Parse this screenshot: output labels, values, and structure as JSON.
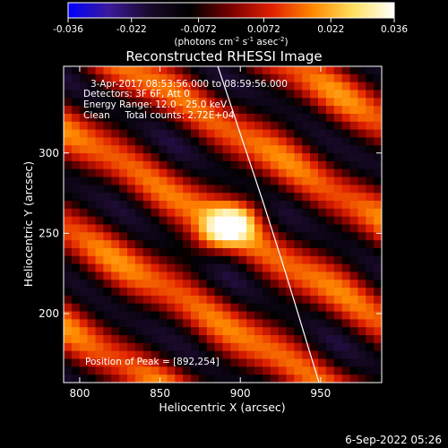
{
  "figure": {
    "date_stamp": "6-Sep-2022 05:26"
  },
  "colorbar": {
    "ticks": [
      "-0.036",
      "-0.022",
      "-0.0072",
      "0.0072",
      "0.022",
      "0.036"
    ],
    "range": [
      -0.036,
      0.036
    ],
    "unit_parts": [
      "(photons cm",
      "-2",
      " s",
      "-1",
      " asec",
      "-2",
      ")"
    ],
    "stops": [
      "#0000ff",
      "#3a1a9a",
      "#1a0a2a",
      "#000000",
      "#7a0000",
      "#e02000",
      "#ff8800",
      "#ffe060",
      "#ffffff"
    ]
  },
  "chart_data": {
    "type": "heatmap",
    "title": "Reconstructed RHESSI Image",
    "xlabel": "Heliocentric X (arcsec)",
    "ylabel": "Heliocentric Y (arcsec)",
    "xlim": [
      790,
      988
    ],
    "ylim": [
      157,
      354
    ],
    "xticks": [
      800,
      850,
      900,
      950
    ],
    "yticks": [
      200,
      250,
      300
    ],
    "info_lines": [
      "3-Apr-2017 08:53:56.000 to 08:59:56.000",
      "Detectors: 3F 6F, Att 0",
      "Energy Range: 12.0 - 25.0 keV",
      "Clean     Total counts: 2.72E+04"
    ],
    "peak_label": "Position of Peak = [892,254]",
    "peak": {
      "x": 892,
      "y": 254,
      "value": 0.036
    },
    "limb_curve": {
      "x": [
        886,
        893,
        900,
        907,
        914,
        921,
        928,
        935,
        942,
        949
      ],
      "y": [
        354,
        333,
        312,
        291,
        270,
        248,
        226,
        203,
        180,
        157
      ]
    },
    "grid_cells": 40,
    "colors": {
      "limb": "#ffffff",
      "frame": "#ffffff"
    }
  }
}
